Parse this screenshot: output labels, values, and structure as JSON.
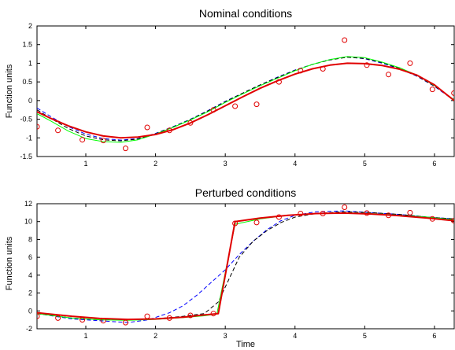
{
  "chart_data": [
    {
      "type": "line",
      "title": "Nominal conditions",
      "xlabel": "",
      "ylabel": "Function units",
      "xlim": [
        0.3,
        6.283
      ],
      "ylim": [
        -1.5,
        2
      ],
      "xticks": [
        1,
        2,
        3,
        4,
        5,
        6
      ],
      "yticks": [
        -1.5,
        -1,
        -0.5,
        0,
        0.5,
        1,
        1.5,
        2
      ],
      "ytick_labels": [
        "-1.5",
        "-1",
        "-0.5",
        "0",
        "0.5",
        "1",
        "1.5",
        "2"
      ],
      "grid": false,
      "x": [
        0.3,
        0.5,
        0.75,
        1.0,
        1.25,
        1.5,
        1.75,
        2.0,
        2.25,
        2.5,
        2.75,
        3.0,
        3.25,
        3.5,
        3.75,
        4.0,
        4.25,
        4.5,
        4.75,
        5.0,
        5.25,
        5.5,
        5.75,
        6.0,
        6.283
      ],
      "series": [
        {
          "color": "#0000ff",
          "style": "dashed",
          "width": 1,
          "values": [
            -0.2,
            -0.43,
            -0.7,
            -0.9,
            -1.02,
            -1.06,
            -1.02,
            -0.88,
            -0.7,
            -0.5,
            -0.27,
            -0.02,
            0.2,
            0.42,
            0.63,
            0.82,
            0.97,
            1.1,
            1.17,
            1.12,
            1.0,
            0.85,
            0.65,
            0.38,
            0.0
          ]
        },
        {
          "color": "#000000",
          "style": "dashed",
          "width": 1,
          "values": [
            -0.25,
            -0.48,
            -0.75,
            -0.95,
            -1.05,
            -1.08,
            -1.03,
            -0.89,
            -0.71,
            -0.51,
            -0.28,
            -0.03,
            0.2,
            0.42,
            0.62,
            0.81,
            0.97,
            1.09,
            1.16,
            1.13,
            1.02,
            0.86,
            0.66,
            0.39,
            0.02
          ]
        },
        {
          "color": "#00ff00",
          "style": "solid",
          "width": 1,
          "values": [
            -0.35,
            -0.55,
            -0.82,
            -1.02,
            -1.1,
            -1.12,
            -1.05,
            -0.9,
            -0.72,
            -0.52,
            -0.3,
            -0.05,
            0.18,
            0.4,
            0.6,
            0.8,
            0.97,
            1.1,
            1.18,
            1.15,
            1.03,
            0.88,
            0.68,
            0.4,
            0.02
          ]
        },
        {
          "color": "#e00000",
          "style": "solid",
          "width": 2,
          "values": [
            -0.3,
            -0.48,
            -0.68,
            -0.84,
            -0.95,
            -1.0,
            -0.98,
            -0.91,
            -0.78,
            -0.6,
            -0.38,
            -0.14,
            0.1,
            0.33,
            0.53,
            0.71,
            0.85,
            0.95,
            1.0,
            0.99,
            0.94,
            0.84,
            0.68,
            0.42,
            0.0
          ]
        }
      ],
      "scatter": {
        "color": "#e00000",
        "x": [
          0.3,
          0.6,
          0.95,
          1.25,
          1.57,
          1.88,
          2.2,
          2.5,
          2.83,
          3.14,
          3.45,
          3.77,
          4.08,
          4.4,
          4.71,
          5.03,
          5.34,
          5.65,
          5.97,
          6.28
        ],
        "y": [
          -0.7,
          -0.8,
          -1.05,
          -1.07,
          -1.28,
          -0.72,
          -0.8,
          -0.6,
          -0.25,
          -0.15,
          -0.1,
          0.5,
          0.8,
          0.85,
          1.62,
          0.95,
          0.7,
          1.0,
          0.3,
          0.2
        ]
      }
    },
    {
      "type": "line",
      "title": "Perturbed conditions",
      "xlabel": "Time",
      "ylabel": "Function units",
      "xlim": [
        0.3,
        6.283
      ],
      "ylim": [
        -2,
        12
      ],
      "xticks": [
        1,
        2,
        3,
        4,
        5,
        6
      ],
      "yticks": [
        -2,
        0,
        2,
        4,
        6,
        8,
        10,
        12
      ],
      "ytick_labels": [
        "-2",
        "0",
        "2",
        "4",
        "6",
        "8",
        "10",
        "12"
      ],
      "grid": false,
      "series": [
        {
          "color": "#0000ff",
          "style": "dashed",
          "width": 1,
          "x": [
            0.3,
            0.8,
            1.2,
            1.6,
            1.9,
            2.2,
            2.4,
            2.6,
            2.8,
            3.0,
            3.2,
            3.4,
            3.6,
            3.8,
            4.0,
            4.3,
            4.7,
            5.1,
            5.5,
            5.9,
            6.283
          ],
          "values": [
            -0.3,
            -0.9,
            -1.1,
            -1.3,
            -1.0,
            -0.2,
            0.6,
            1.8,
            3.2,
            4.6,
            6.3,
            7.8,
            9.1,
            10.1,
            10.7,
            11.1,
            11.2,
            11.0,
            10.8,
            10.5,
            10.3
          ]
        },
        {
          "color": "#000000",
          "style": "dashed",
          "width": 1,
          "x": [
            0.3,
            0.8,
            1.2,
            1.6,
            2.0,
            2.4,
            2.7,
            2.9,
            3.05,
            3.2,
            3.4,
            3.6,
            3.8,
            4.0,
            4.3,
            4.7,
            5.1,
            5.5,
            5.9,
            6.283
          ],
          "values": [
            -0.3,
            -0.8,
            -1.0,
            -1.0,
            -0.9,
            -0.6,
            -0.3,
            1.0,
            3.5,
            6.0,
            7.8,
            9.0,
            9.9,
            10.5,
            10.9,
            11.1,
            11.0,
            10.8,
            10.5,
            10.3
          ]
        },
        {
          "color": "#00ff00",
          "style": "solid",
          "width": 1,
          "x": [
            0.3,
            0.8,
            1.2,
            1.6,
            2.0,
            2.4,
            2.7,
            2.88,
            3.14,
            3.5,
            3.9,
            4.3,
            4.7,
            5.1,
            5.5,
            5.9,
            6.283
          ],
          "values": [
            -0.3,
            -0.8,
            -1.0,
            -1.05,
            -0.95,
            -0.75,
            -0.55,
            -0.35,
            9.7,
            10.3,
            10.7,
            10.9,
            11.0,
            10.9,
            10.7,
            10.5,
            10.2
          ]
        },
        {
          "color": "#e00000",
          "style": "solid",
          "width": 2,
          "x": [
            0.3,
            0.8,
            1.2,
            1.6,
            2.0,
            2.4,
            2.7,
            2.9,
            3.14,
            3.5,
            3.9,
            4.3,
            4.7,
            5.1,
            5.5,
            5.9,
            6.283
          ],
          "values": [
            -0.2,
            -0.6,
            -0.85,
            -0.95,
            -0.9,
            -0.7,
            -0.45,
            -0.3,
            10.0,
            10.4,
            10.7,
            10.9,
            10.95,
            10.85,
            10.65,
            10.4,
            10.1
          ]
        }
      ],
      "scatter": {
        "color": "#e00000",
        "x": [
          0.3,
          0.6,
          0.95,
          1.25,
          1.57,
          1.88,
          2.2,
          2.5,
          2.83,
          3.14,
          3.45,
          3.77,
          4.08,
          4.4,
          4.71,
          5.03,
          5.34,
          5.65,
          5.97,
          6.28
        ],
        "y": [
          -0.6,
          -0.8,
          -1.0,
          -1.1,
          -1.3,
          -0.6,
          -0.8,
          -0.5,
          -0.3,
          9.8,
          9.9,
          10.5,
          10.9,
          10.9,
          11.6,
          10.95,
          10.7,
          11.0,
          10.3,
          10.1
        ]
      }
    }
  ]
}
